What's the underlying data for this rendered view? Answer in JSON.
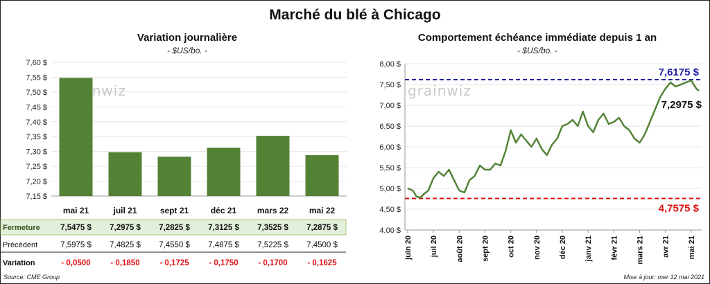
{
  "title": "Marché du blé à Chicago",
  "footer": {
    "source": "Source: CME Group",
    "updated": "Mise à jour: mer 12 mai 2021"
  },
  "watermark": "grainwiz",
  "colors": {
    "bar": "#548235",
    "line": "#548235",
    "high": "#1f1fa0",
    "low": "#e01010",
    "negative": "#e01010",
    "row_highlight": "#e2efda"
  },
  "chart_data": [
    {
      "type": "bar",
      "title": "Variation journalière",
      "subtitle": "- $US/bo. -",
      "categories": [
        "mai 21",
        "juil 21",
        "sept 21",
        "déc 21",
        "mars 22",
        "mai 22"
      ],
      "values": [
        7.5475,
        7.2975,
        7.2825,
        7.3125,
        7.3525,
        7.2875
      ],
      "ylim": [
        7.15,
        7.6
      ],
      "yticks": [
        "7,15 $",
        "7,20 $",
        "7,25 $",
        "7,30 $",
        "7,35 $",
        "7,40 $",
        "7,45 $",
        "7,50 $",
        "7,55 $",
        "7,60 $"
      ],
      "table": {
        "rows": [
          {
            "label": "Fermeture",
            "values": [
              "7,5475  $",
              "7,2975  $",
              "7,2825  $",
              "7,3125  $",
              "7,3525  $",
              "7,2875  $"
            ]
          },
          {
            "label": "Précédent",
            "values": [
              "7,5975  $",
              "7,4825  $",
              "7,4550  $",
              "7,4875  $",
              "7,5225  $",
              "7,4500  $"
            ]
          },
          {
            "label": "Variation",
            "values": [
              "- 0,0500",
              "- 0,1850",
              "- 0,1725",
              "- 0,1750",
              "- 0,1700",
              "- 0,1625"
            ]
          }
        ]
      }
    },
    {
      "type": "line",
      "title": "Comportement  échéance immédiate depuis 1 an",
      "subtitle": "- $US/bo. -",
      "ylim": [
        4.0,
        8.0
      ],
      "yticks": [
        "4,00 $",
        "4,50 $",
        "5,00 $",
        "5,50 $",
        "6,00 $",
        "6,50 $",
        "7,00 $",
        "7,50 $",
        "8,00 $"
      ],
      "xticks": [
        "juin 20",
        "juil 20",
        "août 20",
        "sept 20",
        "oct 20",
        "nov 20",
        "déc 20",
        "janv 21",
        "févr 21",
        "mars 21",
        "avr 21",
        "mai 21"
      ],
      "high": {
        "value": 7.6175,
        "label": "7,6175  $"
      },
      "low": {
        "value": 4.7575,
        "label": "4,7575  $"
      },
      "last": {
        "value": 7.2975,
        "label": "7,2975 $"
      },
      "series": [
        {
          "x": [
            0,
            0.2,
            0.35,
            0.5,
            0.6,
            0.8,
            1.0,
            1.2,
            1.4,
            1.6,
            1.8,
            2.0,
            2.2,
            2.4,
            2.6,
            2.8,
            3.0,
            3.2,
            3.4,
            3.6,
            3.8,
            4.0,
            4.2,
            4.4,
            4.6,
            4.8,
            5.0,
            5.2,
            5.4,
            5.6,
            5.8,
            6.0,
            6.2,
            6.4,
            6.6,
            6.8,
            7.0,
            7.2,
            7.4,
            7.6,
            7.8,
            8.0,
            8.2,
            8.4,
            8.6,
            8.8,
            9.0,
            9.2,
            9.4,
            9.6,
            9.8,
            10.0,
            10.2,
            10.4,
            10.6,
            10.8,
            11.0,
            11.2,
            11.3
          ],
          "values": [
            5.0,
            4.95,
            4.8,
            4.78,
            4.85,
            4.95,
            5.25,
            5.4,
            5.3,
            5.45,
            5.2,
            4.95,
            4.9,
            5.2,
            5.3,
            5.55,
            5.45,
            5.45,
            5.6,
            5.55,
            5.9,
            6.4,
            6.1,
            6.3,
            6.15,
            6.0,
            6.2,
            5.95,
            5.8,
            6.05,
            6.2,
            6.5,
            6.55,
            6.65,
            6.5,
            6.85,
            6.5,
            6.35,
            6.65,
            6.8,
            6.55,
            6.6,
            6.7,
            6.5,
            6.4,
            6.2,
            6.1,
            6.3,
            6.6,
            6.9,
            7.2,
            7.4,
            7.55,
            7.45,
            7.5,
            7.55,
            7.6,
            7.4,
            7.35
          ]
        }
      ]
    }
  ]
}
